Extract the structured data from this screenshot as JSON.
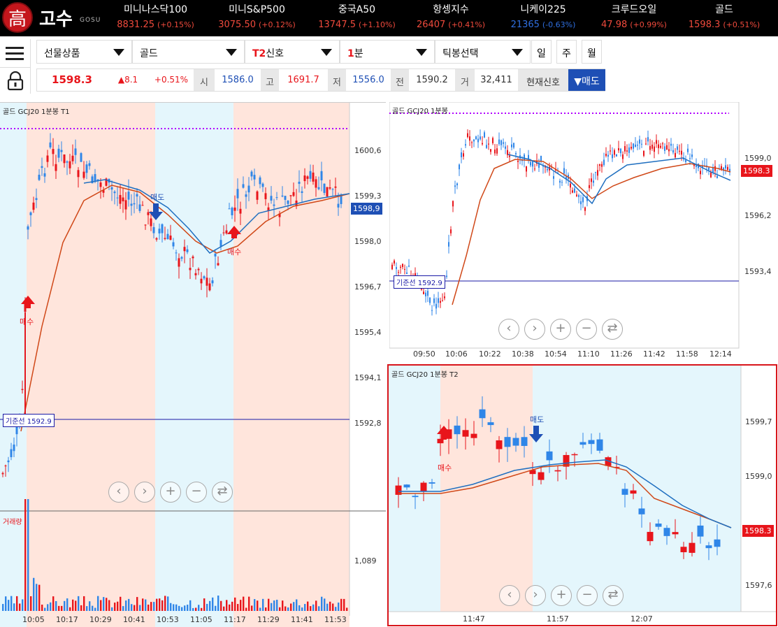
{
  "app": {
    "logo_char": "高",
    "logo_text": "고수",
    "logo_sub": "GOSU"
  },
  "tickers": [
    {
      "name": "미니나스닥100",
      "price": "8831.25",
      "change": "(+0.15%)",
      "dir": "up"
    },
    {
      "name": "미니S&P500",
      "price": "3075.50",
      "change": "(+0.12%)",
      "dir": "up"
    },
    {
      "name": "중국A50",
      "price": "13747.5",
      "change": "(+1.10%)",
      "dir": "up"
    },
    {
      "name": "항셍지수",
      "price": "26407",
      "change": "(+0.41%)",
      "dir": "up"
    },
    {
      "name": "니케이225",
      "price": "21365",
      "change": "(-0.63%)",
      "dir": "down"
    },
    {
      "name": "크루드오일",
      "price": "47.98",
      "change": "(+0.99%)",
      "dir": "up"
    },
    {
      "name": "골드",
      "price": "1598.3",
      "change": "(+0.51%)",
      "dir": "up"
    }
  ],
  "toolbar": {
    "product_select": "선물상품",
    "symbol_select": "골드",
    "signal_prefix": "T2",
    "signal_suffix": "신호",
    "interval_num": "1",
    "interval_unit": "분",
    "tick_select": "틱봉선택",
    "period_day": "일",
    "period_week": "주",
    "period_month": "월"
  },
  "quote": {
    "last": "1598.3",
    "change": "▲8.1",
    "change_pct": "+0.51%",
    "open_label": "시",
    "open": "1586.0",
    "high_label": "고",
    "high": "1691.7",
    "low_label": "저",
    "low": "1556.0",
    "prev_label": "전",
    "prev": "1590.2",
    "vol_label": "거",
    "vol": "32,411",
    "signal_label": "현재신호",
    "signal_value": "▼매도"
  },
  "chart_left": {
    "title": "골드  GCJ20  1분봉  T1",
    "y_ticks": [
      "1600,6",
      "1599,3",
      "1598,0",
      "1596,7",
      "1595,4",
      "1594,1",
      "1592,8"
    ],
    "x_ticks": [
      "10:05",
      "10:17",
      "10:29",
      "10:41",
      "10:53",
      "11:05",
      "11:17",
      "11:29",
      "11:41",
      "11:53"
    ],
    "price_tag": "1598,9",
    "baseline_label": "기준선 1592.9",
    "buy_label": "매수",
    "sell_label": "매도",
    "volume_label": "거래량",
    "volume_tick": "1,089"
  },
  "chart_right_top": {
    "title": "골드  GCJ20  1분봉",
    "y_ticks": [
      "1599,0",
      "1596,2",
      "1593,4"
    ],
    "x_ticks": [
      "09:50",
      "10:06",
      "10:22",
      "10:38",
      "10:54",
      "11:10",
      "11:26",
      "11:42",
      "11:58",
      "12:14"
    ],
    "price_tag": "1598.3",
    "baseline_label": "기준선 1592.9"
  },
  "chart_right_bottom": {
    "title": "골드  GCJ20  1분봉  T2",
    "y_ticks": [
      "1599,7",
      "1599,0",
      "1597,6"
    ],
    "x_ticks": [
      "11:47",
      "11:57",
      "12:07"
    ],
    "price_tag": "1598.3",
    "buy_label": "매수",
    "sell_label": "매도"
  },
  "nav_icons": [
    "chevron-left-icon",
    "chevron-right-icon",
    "zoom-in-icon",
    "zoom-out-icon",
    "reset-icon"
  ],
  "colors": {
    "up": "#e8151b",
    "down": "#2f86e8",
    "accent": "#1e4fb5",
    "ma_fast": "#1f6fc0",
    "ma_slow": "#d04818",
    "sell_zone": "#ffe5dc",
    "buy_zone": "#e4f6fc"
  }
}
